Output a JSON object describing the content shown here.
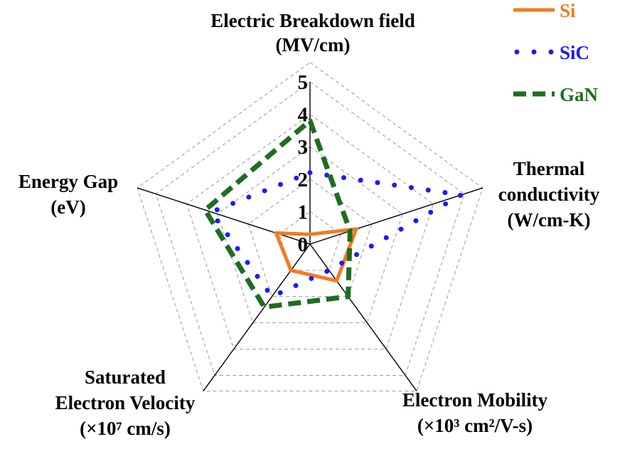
{
  "chart_data": {
    "type": "radar",
    "axes": [
      {
        "lines": [
          "Electric Breakdown field",
          "(MV/cm)"
        ]
      },
      {
        "lines": [
          "Thermal",
          "conductivity",
          "(W/cm-K)"
        ]
      },
      {
        "lines": [
          "Electron Mobility",
          "(×10³ cm²/V-s)"
        ]
      },
      {
        "lines": [
          "Saturated",
          "Electron Velocity",
          "(×10⁷ cm/s)"
        ]
      },
      {
        "lines": [
          "Energy Gap",
          "(eV)"
        ]
      }
    ],
    "r_ticks": [
      "0",
      "1",
      "2",
      "3",
      "4",
      "5"
    ],
    "r_range": [
      0,
      5
    ],
    "grid": true,
    "legend_position": "top-right",
    "series": [
      {
        "name": "Si",
        "color": "#f47a20",
        "style": "solid",
        "values": [
          0.3,
          1.5,
          1.4,
          1.0,
          1.1
        ]
      },
      {
        "name": "SiC",
        "color": "#1a1aff",
        "style": "dotted",
        "values": [
          2.2,
          4.9,
          1.0,
          2.0,
          3.2
        ]
      },
      {
        "name": "GaN",
        "color": "#1e6e1e",
        "style": "dashed",
        "values": [
          3.8,
          1.3,
          2.0,
          2.4,
          3.4
        ]
      }
    ]
  }
}
